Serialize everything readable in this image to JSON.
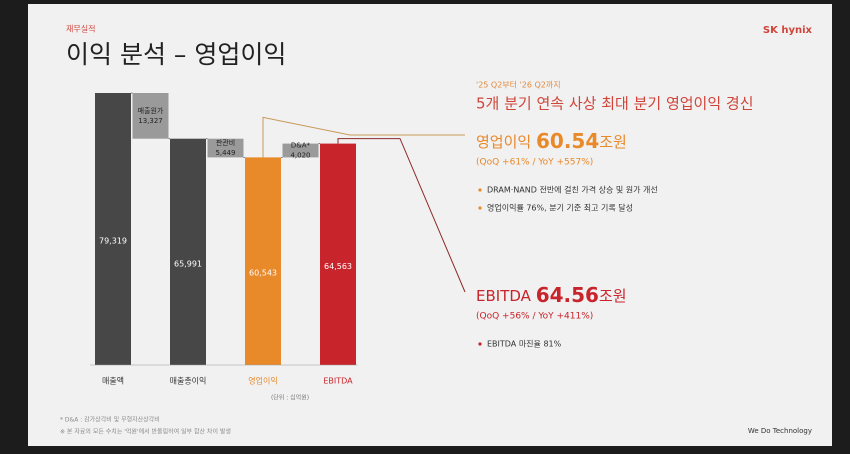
{
  "header": {
    "section": "재무실적",
    "title": "이익 분석 – 영업이익",
    "logo": "SK hynix",
    "tagline": "We Do Technology"
  },
  "chart_data": {
    "type": "waterfall",
    "categories": [
      "매출액",
      "매출원가",
      "매출총이익",
      "판관비",
      "영업이익",
      "D&A*",
      "EBITDA"
    ],
    "values": [
      79319,
      13327,
      65991,
      5449,
      60543,
      4020,
      64563
    ],
    "value_labels": [
      "79,319",
      "13,327",
      "65,991",
      "5,449",
      "60,543",
      "4,020",
      "64,563"
    ],
    "kinds": [
      "total",
      "down",
      "total",
      "down",
      "total",
      "up",
      "total"
    ],
    "colors": [
      "#474747",
      "#9a9a9a",
      "#474747",
      "#9a9a9a",
      "#e8892a",
      "#9a9a9a",
      "#c8242b"
    ],
    "unit": "(단위 : 십억원)"
  },
  "callouts": {
    "period": "'25 Q2부터 '26 Q2까지",
    "headline": "5개 분기 연속 사상 최대 분기 영업이익 경신",
    "op": {
      "label": "영업이익",
      "amount": "60.54",
      "unit": "조원",
      "change": "(QoQ +61% / YoY +557%)",
      "bullets": [
        "DRAM·NAND 전반에 걸친 가격 상승 및 원가 개선",
        "영업이익률 76%, 분기 기준 최고 기록 달성"
      ]
    },
    "ebitda": {
      "label": "EBITDA",
      "amount": "64.56",
      "unit": "조원",
      "change": "(QoQ +56% / YoY +411%)",
      "bullets": [
        "EBITDA 마진율 81%"
      ]
    }
  },
  "footnotes": [
    "* D&A : 감가상각비 및 무형자산상각비",
    "※ 본 자료의 모든 수치는 '억원'에서 반올림하여 일부 합산 차이 발생"
  ]
}
